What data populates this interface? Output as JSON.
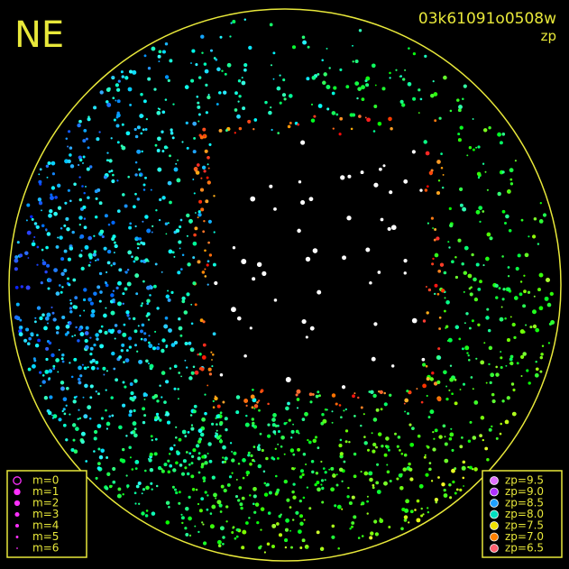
{
  "header": {
    "direction": "NE",
    "frame_id": "03k61091o0508w",
    "quantity": "zp"
  },
  "magnitude_legend": [
    {
      "label": "m=0"
    },
    {
      "label": "m=1"
    },
    {
      "label": "m=2"
    },
    {
      "label": "m=3"
    },
    {
      "label": "m=4"
    },
    {
      "label": "m=5"
    },
    {
      "label": "m=6"
    }
  ],
  "zp_legend": [
    {
      "label": "zp=9.5",
      "color": "#e070ff"
    },
    {
      "label": "zp=9.0",
      "color": "#b030ff"
    },
    {
      "label": "zp=8.5",
      "color": "#20a0ff"
    },
    {
      "label": "zp=8.0",
      "color": "#00e0c0"
    },
    {
      "label": "zp=7.5",
      "color": "#f0e000"
    },
    {
      "label": "zp=7.0",
      "color": "#ff8000"
    },
    {
      "label": "zp=6.5",
      "color": "#ff6070"
    }
  ]
}
